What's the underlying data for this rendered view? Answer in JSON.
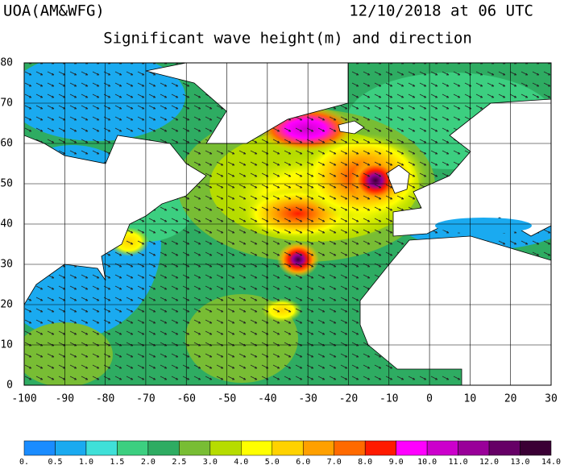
{
  "header_left": "UOA(AM&WFG)",
  "header_right": "12/10/2018 at 06 UTC",
  "title": "Significant wave height(m) and direction",
  "map": {
    "xlim": [
      -100,
      30
    ],
    "ylim": [
      0,
      80
    ],
    "xticks": [
      -100,
      -90,
      -80,
      -70,
      -60,
      -50,
      -40,
      -30,
      -20,
      -10,
      0,
      10,
      20,
      30
    ],
    "yticks": [
      0,
      10,
      20,
      30,
      40,
      50,
      60,
      70,
      80
    ]
  },
  "colorbar": {
    "levels": [
      {
        "value": 0,
        "label": "0."
      },
      0.5,
      {
        "value": 1,
        "label": "1.0"
      },
      1.5,
      {
        "value": 2,
        "label": "2.0"
      },
      2.5,
      {
        "value": 3,
        "label": "3.0"
      },
      {
        "value": 4,
        "label": "4.0"
      },
      {
        "value": 5,
        "label": "5.0"
      },
      {
        "value": 6,
        "label": "6.0"
      },
      {
        "value": 7,
        "label": "7.0"
      },
      {
        "value": 8,
        "label": "8.0"
      },
      {
        "value": 9,
        "label": "9.0"
      },
      {
        "value": 10,
        "label": "10.0"
      },
      {
        "value": 11,
        "label": "11.0"
      },
      {
        "value": 12,
        "label": "12.0"
      },
      {
        "value": 13,
        "label": "13.0"
      },
      {
        "value": 14,
        "label": "14.0"
      }
    ],
    "colors": [
      "#1a8cff",
      "#1aaaf0",
      "#3fe0d8",
      "#3ccf80",
      "#2eac62",
      "#78bd34",
      "#b6dc00",
      "#ffff00",
      "#ffd200",
      "#ffa000",
      "#ff6a00",
      "#ff1a00",
      "#ff00ff",
      "#cc00cc",
      "#990099",
      "#660066",
      "#3a0034"
    ]
  }
}
